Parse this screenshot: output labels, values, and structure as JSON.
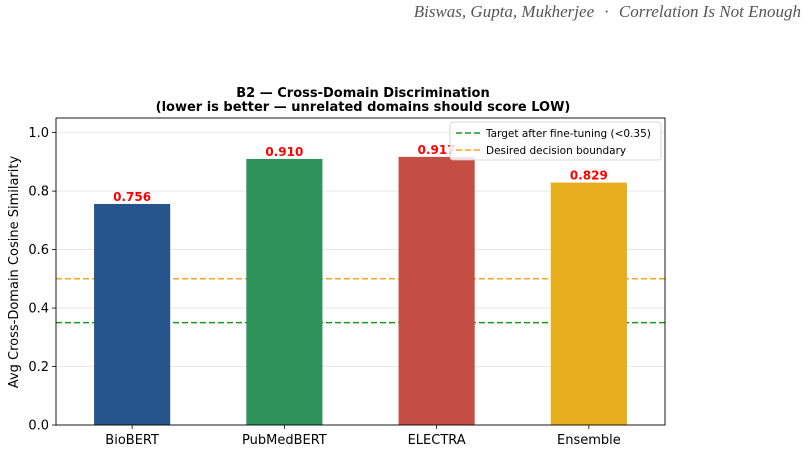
{
  "header": {
    "authors": "Biswas, Gupta, Mukherjee",
    "separator": "·",
    "paper_title": "Correlation Is Not Enough"
  },
  "chart_data": {
    "type": "bar",
    "title_line1": "B2 — Cross-Domain Discrimination",
    "title_line2": "(lower is better — unrelated domains should score LOW)",
    "xlabel": "",
    "ylabel": "Avg Cross-Domain Cosine Similarity",
    "categories": [
      "BioBERT",
      "PubMedBERT",
      "ELECTRA",
      "Ensemble"
    ],
    "values": [
      0.756,
      0.91,
      0.917,
      0.829
    ],
    "value_labels": [
      "0.756",
      "0.910",
      "0.917",
      "0.829"
    ],
    "colors": [
      "#27548a",
      "#2e9359",
      "#c44e43",
      "#e8ad1c"
    ],
    "ylim": [
      0,
      1.05
    ],
    "yticks": [
      0.0,
      0.2,
      0.4,
      0.6,
      0.8,
      1.0
    ],
    "ytick_labels": [
      "0.0",
      "0.2",
      "0.4",
      "0.6",
      "0.8",
      "1.0"
    ],
    "grid": "horizontal",
    "reference_lines": [
      {
        "name": "Target after fine-tuning (<0.35)",
        "value": 0.35,
        "color": "#1a9c1a",
        "style": "dashed"
      },
      {
        "name": "Desired decision boundary",
        "value": 0.5,
        "color": "#f5a623",
        "style": "dashed"
      }
    ],
    "legend_position": "top-right"
  }
}
